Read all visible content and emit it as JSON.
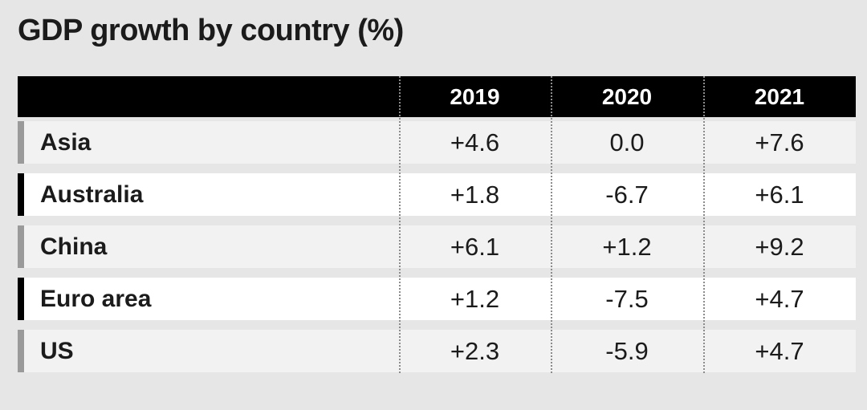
{
  "chart_data": {
    "type": "table",
    "title": "GDP growth by country (%)",
    "columns": [
      "",
      "2019",
      "2020",
      "2021"
    ],
    "rows": [
      {
        "label": "Asia",
        "values": [
          "+4.6",
          "0.0",
          "+7.6"
        ],
        "bar_color": "#9a9a9a"
      },
      {
        "label": "Australia",
        "values": [
          "+1.8",
          "-6.7",
          "+6.1"
        ],
        "bar_color": "#000000"
      },
      {
        "label": "China",
        "values": [
          "+6.1",
          "+1.2",
          "+9.2"
        ],
        "bar_color": "#9a9a9a"
      },
      {
        "label": "Euro area",
        "values": [
          "+1.2",
          "-7.5",
          "+4.7"
        ],
        "bar_color": "#000000"
      },
      {
        "label": "US",
        "values": [
          "+2.3",
          "-5.9",
          "+4.7"
        ],
        "bar_color": "#9a9a9a"
      }
    ]
  },
  "colors": {
    "background": "#e6e6e7",
    "header_background": "#000000",
    "header_text": "#ffffff",
    "row_odd": "#f2f2f2",
    "row_even": "#ffffff",
    "text": "#1b1b1b",
    "divider": "#8c8c8c"
  }
}
